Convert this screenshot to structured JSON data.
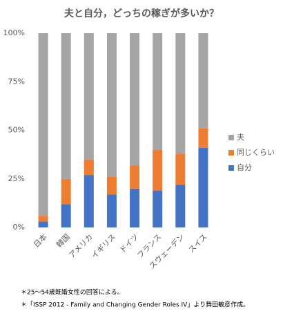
{
  "chart_data": {
    "type": "stacked_bar",
    "title": "夫と自分，どっちの稼ぎが多いか？",
    "categories": [
      "日本",
      "韓国",
      "アメリカ",
      "イギリス",
      "ドイツ",
      "フランス",
      "スウェーデン",
      "スイス"
    ],
    "series": [
      {
        "name": "自分",
        "color": "#4472c4",
        "values": [
          3,
          12,
          27,
          17,
          20,
          19,
          22,
          41
        ]
      },
      {
        "name": "同じくらい",
        "color": "#ed7d31",
        "values": [
          3,
          13,
          8,
          9,
          12,
          21,
          16,
          10
        ]
      },
      {
        "name": "夫",
        "color": "#a5a5a5",
        "values": [
          94,
          75,
          65,
          74,
          68,
          60,
          62,
          49
        ]
      }
    ],
    "ylim": [
      0,
      100
    ],
    "yticks": [
      {
        "value": 0,
        "label": "0%"
      },
      {
        "value": 25,
        "label": "25%"
      },
      {
        "value": 50,
        "label": "50%"
      },
      {
        "value": 75,
        "label": "75%"
      },
      {
        "value": 100,
        "label": "100%"
      }
    ],
    "legend": "right",
    "notes": [
      "＊25～54歳既婚女性の回答による。",
      "＊「ISSP 2012 - Family and Changing Gender Roles IV」より舞田敏彦作成。"
    ]
  }
}
